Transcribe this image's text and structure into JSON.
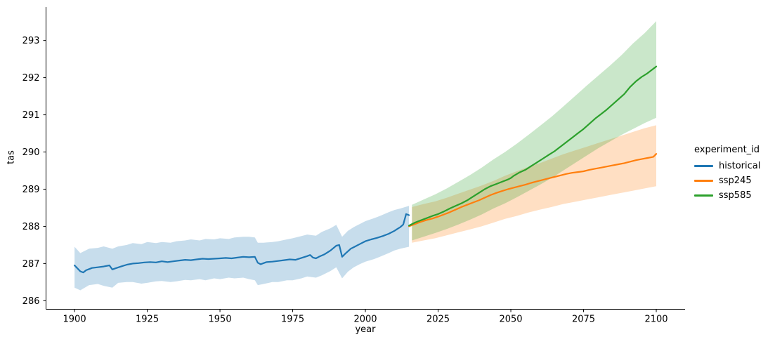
{
  "chart_data": {
    "type": "line",
    "title": "",
    "xlabel": "year",
    "ylabel": "tas",
    "grid": false,
    "xlim": [
      1890.2,
      2109.9
    ],
    "ylim": [
      285.77,
      293.9
    ],
    "xticks": [
      1900,
      1925,
      1950,
      1975,
      2000,
      2025,
      2050,
      2075,
      2100
    ],
    "xtick_labels": [
      "1900",
      "1925",
      "1950",
      "1975",
      "2000",
      "2025",
      "2050",
      "2075",
      "2100"
    ],
    "yticks": [
      286,
      287,
      288,
      289,
      290,
      291,
      292,
      293
    ],
    "ytick_labels": [
      "286",
      "287",
      "288",
      "289",
      "290",
      "291",
      "292",
      "293"
    ],
    "band_alpha": 0.25,
    "legend": {
      "title": "experiment_id",
      "position": "right"
    },
    "series": [
      {
        "name": "historical",
        "color": "#1f77b4",
        "points": [
          [
            1900,
            286.95
          ],
          [
            1901,
            286.87
          ],
          [
            1902,
            286.79
          ],
          [
            1903,
            286.76
          ],
          [
            1904,
            286.82
          ],
          [
            1905,
            286.85
          ],
          [
            1906,
            286.88
          ],
          [
            1908,
            286.9
          ],
          [
            1910,
            286.92
          ],
          [
            1912,
            286.95
          ],
          [
            1913,
            286.84
          ],
          [
            1914,
            286.87
          ],
          [
            1916,
            286.92
          ],
          [
            1918,
            286.97
          ],
          [
            1920,
            287.0
          ],
          [
            1922,
            287.01
          ],
          [
            1924,
            287.03
          ],
          [
            1926,
            287.04
          ],
          [
            1928,
            287.03
          ],
          [
            1930,
            287.06
          ],
          [
            1932,
            287.04
          ],
          [
            1934,
            287.06
          ],
          [
            1936,
            287.08
          ],
          [
            1938,
            287.1
          ],
          [
            1940,
            287.09
          ],
          [
            1942,
            287.11
          ],
          [
            1944,
            287.13
          ],
          [
            1946,
            287.12
          ],
          [
            1948,
            287.13
          ],
          [
            1950,
            287.14
          ],
          [
            1952,
            287.15
          ],
          [
            1954,
            287.14
          ],
          [
            1956,
            287.16
          ],
          [
            1958,
            287.18
          ],
          [
            1960,
            287.17
          ],
          [
            1962,
            287.18
          ],
          [
            1963,
            287.02
          ],
          [
            1964,
            286.98
          ],
          [
            1965,
            287.01
          ],
          [
            1966,
            287.04
          ],
          [
            1968,
            287.05
          ],
          [
            1970,
            287.07
          ],
          [
            1972,
            287.09
          ],
          [
            1974,
            287.11
          ],
          [
            1976,
            287.1
          ],
          [
            1978,
            287.15
          ],
          [
            1980,
            287.2
          ],
          [
            1981,
            287.23
          ],
          [
            1982,
            287.16
          ],
          [
            1983,
            287.14
          ],
          [
            1984,
            287.18
          ],
          [
            1986,
            287.25
          ],
          [
            1988,
            287.35
          ],
          [
            1990,
            287.48
          ],
          [
            1991,
            287.5
          ],
          [
            1992,
            287.18
          ],
          [
            1993,
            287.26
          ],
          [
            1994,
            287.33
          ],
          [
            1995,
            287.4
          ],
          [
            1996,
            287.44
          ],
          [
            1998,
            287.52
          ],
          [
            2000,
            287.6
          ],
          [
            2002,
            287.65
          ],
          [
            2004,
            287.69
          ],
          [
            2006,
            287.74
          ],
          [
            2008,
            287.8
          ],
          [
            2010,
            287.88
          ],
          [
            2011,
            287.93
          ],
          [
            2012,
            287.98
          ],
          [
            2013,
            288.05
          ],
          [
            2014,
            288.33
          ],
          [
            2015,
            288.3
          ]
        ],
        "band": [
          [
            1900,
            286.35,
            287.45
          ],
          [
            1902,
            286.28,
            287.28
          ],
          [
            1905,
            286.42,
            287.4
          ],
          [
            1908,
            286.45,
            287.42
          ],
          [
            1910,
            286.4,
            287.46
          ],
          [
            1913,
            286.35,
            287.4
          ],
          [
            1915,
            286.48,
            287.46
          ],
          [
            1918,
            286.5,
            287.5
          ],
          [
            1920,
            286.5,
            287.55
          ],
          [
            1923,
            286.46,
            287.52
          ],
          [
            1925,
            286.48,
            287.58
          ],
          [
            1928,
            286.52,
            287.55
          ],
          [
            1930,
            286.53,
            287.58
          ],
          [
            1933,
            286.5,
            287.56
          ],
          [
            1935,
            286.52,
            287.6
          ],
          [
            1938,
            286.56,
            287.62
          ],
          [
            1940,
            286.55,
            287.65
          ],
          [
            1943,
            286.58,
            287.62
          ],
          [
            1945,
            286.55,
            287.66
          ],
          [
            1948,
            286.6,
            287.65
          ],
          [
            1950,
            286.58,
            287.68
          ],
          [
            1953,
            286.62,
            287.66
          ],
          [
            1955,
            286.6,
            287.7
          ],
          [
            1958,
            286.62,
            287.72
          ],
          [
            1960,
            286.58,
            287.72
          ],
          [
            1962,
            286.55,
            287.7
          ],
          [
            1963,
            286.42,
            287.56
          ],
          [
            1965,
            286.45,
            287.56
          ],
          [
            1968,
            286.5,
            287.58
          ],
          [
            1970,
            286.5,
            287.6
          ],
          [
            1973,
            286.55,
            287.65
          ],
          [
            1975,
            286.55,
            287.68
          ],
          [
            1978,
            286.6,
            287.74
          ],
          [
            1980,
            286.65,
            287.78
          ],
          [
            1983,
            286.62,
            287.75
          ],
          [
            1985,
            286.68,
            287.85
          ],
          [
            1988,
            286.8,
            287.95
          ],
          [
            1990,
            286.9,
            288.04
          ],
          [
            1992,
            286.6,
            287.72
          ],
          [
            1994,
            286.78,
            287.88
          ],
          [
            1996,
            286.9,
            287.98
          ],
          [
            1998,
            286.98,
            288.06
          ],
          [
            2000,
            287.05,
            288.14
          ],
          [
            2003,
            287.12,
            288.22
          ],
          [
            2005,
            287.18,
            288.28
          ],
          [
            2008,
            287.28,
            288.38
          ],
          [
            2010,
            287.35,
            288.44
          ],
          [
            2012,
            287.4,
            288.48
          ],
          [
            2015,
            287.45,
            288.55
          ]
        ]
      },
      {
        "name": "ssp245",
        "color": "#ff7f0e",
        "points": [
          [
            2015,
            288.0
          ],
          [
            2017,
            288.06
          ],
          [
            2019,
            288.12
          ],
          [
            2021,
            288.17
          ],
          [
            2023,
            288.21
          ],
          [
            2025,
            288.26
          ],
          [
            2027,
            288.32
          ],
          [
            2029,
            288.38
          ],
          [
            2031,
            288.45
          ],
          [
            2033,
            288.52
          ],
          [
            2035,
            288.58
          ],
          [
            2037,
            288.64
          ],
          [
            2039,
            288.7
          ],
          [
            2041,
            288.77
          ],
          [
            2043,
            288.84
          ],
          [
            2045,
            288.9
          ],
          [
            2047,
            288.95
          ],
          [
            2049,
            289.0
          ],
          [
            2051,
            289.04
          ],
          [
            2053,
            289.08
          ],
          [
            2055,
            289.12
          ],
          [
            2057,
            289.17
          ],
          [
            2059,
            289.21
          ],
          [
            2061,
            289.25
          ],
          [
            2063,
            289.29
          ],
          [
            2065,
            289.33
          ],
          [
            2067,
            289.37
          ],
          [
            2069,
            289.41
          ],
          [
            2071,
            289.44
          ],
          [
            2073,
            289.46
          ],
          [
            2075,
            289.48
          ],
          [
            2077,
            289.52
          ],
          [
            2079,
            289.55
          ],
          [
            2081,
            289.58
          ],
          [
            2083,
            289.61
          ],
          [
            2085,
            289.64
          ],
          [
            2087,
            289.67
          ],
          [
            2089,
            289.7
          ],
          [
            2091,
            289.74
          ],
          [
            2093,
            289.78
          ],
          [
            2095,
            289.81
          ],
          [
            2097,
            289.84
          ],
          [
            2099,
            289.87
          ],
          [
            2100,
            289.95
          ]
        ],
        "band": [
          [
            2016,
            287.56,
            288.52
          ],
          [
            2020,
            287.62,
            288.6
          ],
          [
            2024,
            287.68,
            288.67
          ],
          [
            2028,
            287.76,
            288.77
          ],
          [
            2032,
            287.84,
            288.88
          ],
          [
            2036,
            287.92,
            288.99
          ],
          [
            2040,
            288.0,
            289.1
          ],
          [
            2044,
            288.1,
            289.22
          ],
          [
            2048,
            288.2,
            289.36
          ],
          [
            2052,
            288.28,
            289.48
          ],
          [
            2056,
            288.37,
            289.6
          ],
          [
            2060,
            288.45,
            289.7
          ],
          [
            2064,
            288.52,
            289.82
          ],
          [
            2068,
            288.6,
            289.94
          ],
          [
            2072,
            288.66,
            290.04
          ],
          [
            2076,
            288.72,
            290.14
          ],
          [
            2080,
            288.78,
            290.24
          ],
          [
            2084,
            288.84,
            290.34
          ],
          [
            2088,
            288.9,
            290.44
          ],
          [
            2092,
            288.96,
            290.54
          ],
          [
            2096,
            289.02,
            290.64
          ],
          [
            2100,
            289.08,
            290.72
          ]
        ]
      },
      {
        "name": "ssp585",
        "color": "#2ca02c",
        "points": [
          [
            2015,
            288.02
          ],
          [
            2017,
            288.1
          ],
          [
            2019,
            288.16
          ],
          [
            2021,
            288.22
          ],
          [
            2023,
            288.28
          ],
          [
            2025,
            288.33
          ],
          [
            2027,
            288.4
          ],
          [
            2029,
            288.48
          ],
          [
            2031,
            288.55
          ],
          [
            2033,
            288.62
          ],
          [
            2035,
            288.7
          ],
          [
            2037,
            288.8
          ],
          [
            2039,
            288.9
          ],
          [
            2041,
            289.0
          ],
          [
            2043,
            289.08
          ],
          [
            2045,
            289.14
          ],
          [
            2047,
            289.2
          ],
          [
            2049,
            289.26
          ],
          [
            2050,
            289.3
          ],
          [
            2051,
            289.36
          ],
          [
            2053,
            289.45
          ],
          [
            2055,
            289.52
          ],
          [
            2057,
            289.62
          ],
          [
            2059,
            289.72
          ],
          [
            2061,
            289.82
          ],
          [
            2063,
            289.92
          ],
          [
            2065,
            290.02
          ],
          [
            2067,
            290.14
          ],
          [
            2069,
            290.26
          ],
          [
            2071,
            290.38
          ],
          [
            2073,
            290.5
          ],
          [
            2075,
            290.62
          ],
          [
            2077,
            290.76
          ],
          [
            2079,
            290.9
          ],
          [
            2081,
            291.02
          ],
          [
            2083,
            291.14
          ],
          [
            2085,
            291.28
          ],
          [
            2087,
            291.42
          ],
          [
            2089,
            291.56
          ],
          [
            2091,
            291.75
          ],
          [
            2093,
            291.9
          ],
          [
            2095,
            292.02
          ],
          [
            2097,
            292.12
          ],
          [
            2099,
            292.24
          ],
          [
            2100,
            292.3
          ]
        ],
        "band": [
          [
            2016,
            287.62,
            288.58
          ],
          [
            2020,
            287.72,
            288.72
          ],
          [
            2024,
            287.82,
            288.86
          ],
          [
            2028,
            287.93,
            289.02
          ],
          [
            2032,
            288.05,
            289.2
          ],
          [
            2036,
            288.18,
            289.38
          ],
          [
            2040,
            288.32,
            289.58
          ],
          [
            2044,
            288.48,
            289.8
          ],
          [
            2048,
            288.62,
            290.0
          ],
          [
            2052,
            288.78,
            290.22
          ],
          [
            2056,
            288.95,
            290.46
          ],
          [
            2060,
            289.12,
            290.7
          ],
          [
            2064,
            289.3,
            290.95
          ],
          [
            2068,
            289.5,
            291.22
          ],
          [
            2072,
            289.7,
            291.5
          ],
          [
            2076,
            289.9,
            291.78
          ],
          [
            2080,
            290.1,
            292.05
          ],
          [
            2084,
            290.28,
            292.32
          ],
          [
            2088,
            290.46,
            292.6
          ],
          [
            2092,
            290.62,
            292.92
          ],
          [
            2096,
            290.78,
            293.2
          ],
          [
            2100,
            290.92,
            293.52
          ]
        ]
      }
    ]
  }
}
